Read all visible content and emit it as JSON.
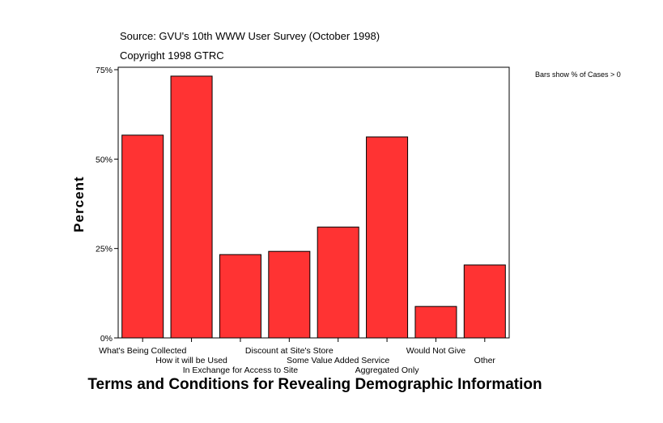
{
  "chart_data": {
    "type": "bar",
    "title": "Terms and Conditions for Revealing Demographic Information",
    "source": "Source: GVU's 10th WWW User Survey (October 1998)",
    "copyright": "Copyright 1998 GTRC",
    "note": "Bars show % of Cases > 0",
    "ylabel": "Percent",
    "xlabel": "",
    "ylim": [
      0,
      75
    ],
    "yticks": [
      {
        "value": 0,
        "label": "0%"
      },
      {
        "value": 25,
        "label": "25%"
      },
      {
        "value": 50,
        "label": "50%"
      },
      {
        "value": 75,
        "label": "75%"
      }
    ],
    "categories": [
      "What's Being Collected",
      "How it will be Used",
      "In Exchange for Access to Site",
      "Discount at Site's Store",
      "Some Value Added Service",
      "Aggregated Only",
      "Would Not Give",
      "Other"
    ],
    "values": [
      56.7,
      73.2,
      23.3,
      24.2,
      31.0,
      56.2,
      8.8,
      20.4
    ],
    "bar_color": "#ff3333",
    "grid": false,
    "legend": "none"
  }
}
